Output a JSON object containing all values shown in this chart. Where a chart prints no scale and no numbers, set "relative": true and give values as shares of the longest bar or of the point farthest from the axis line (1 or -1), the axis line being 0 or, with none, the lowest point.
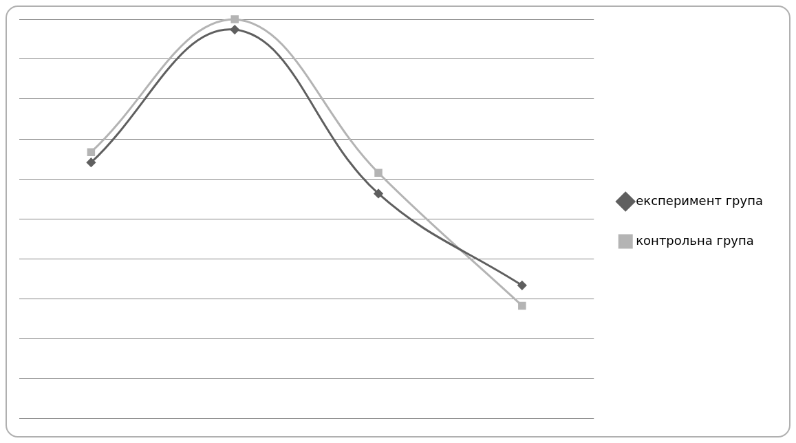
{
  "chart_data": {
    "type": "line",
    "relative": true,
    "categories": [
      null,
      null,
      null,
      null
    ],
    "series": [
      {
        "name": "експеримент група",
        "color": "#5f5f5f",
        "marker": "diamond",
        "values": [
          0.641,
          0.974,
          0.563,
          0.333
        ]
      },
      {
        "name": "контрольна група",
        "color": "#b4b4b4",
        "marker": "square",
        "values": [
          0.667,
          1,
          0.615,
          0.282
        ]
      }
    ],
    "grid": "y",
    "legend": "right"
  }
}
